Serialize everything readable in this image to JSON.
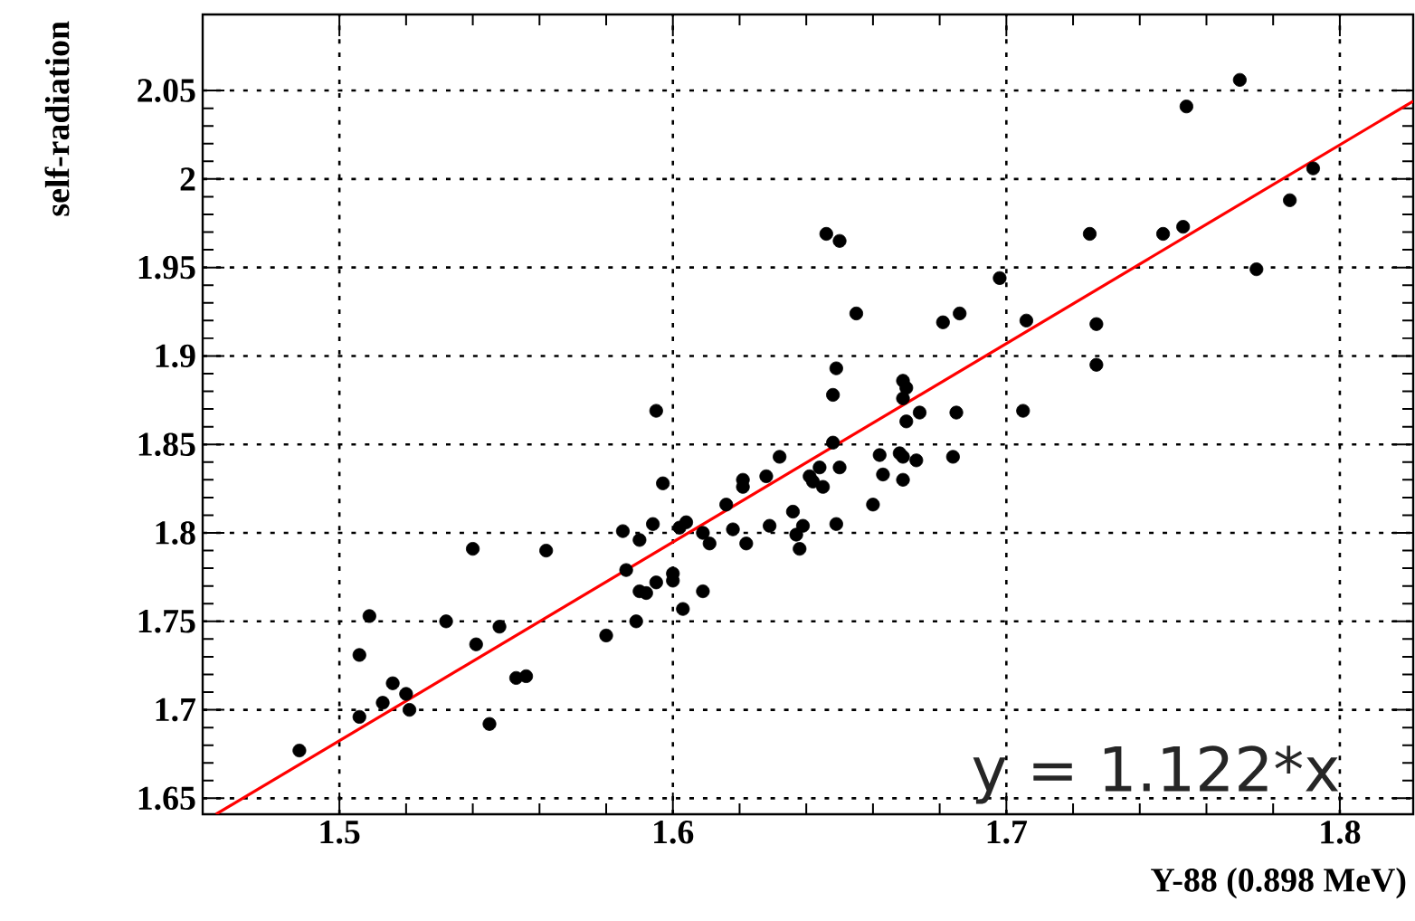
{
  "chart_data": {
    "type": "scatter",
    "xlabel": "Y-88 (0.898 MeV)",
    "ylabel": "self-radiation",
    "xlim": [
      1.459,
      1.822
    ],
    "ylim": [
      1.641,
      2.093
    ],
    "xticks": [
      1.5,
      1.6,
      1.7,
      1.8
    ],
    "yticks": [
      1.65,
      1.7,
      1.75,
      1.8,
      1.85,
      1.9,
      1.95,
      2,
      2.05
    ],
    "grid": true,
    "marker": "circle",
    "annotations": [
      "y = 1.122*x"
    ],
    "series": [
      {
        "color": "#000000",
        "x": [
          1.488,
          1.506,
          1.506,
          1.509,
          1.516,
          1.513,
          1.52,
          1.521,
          1.532,
          1.54,
          1.541,
          1.545,
          1.548,
          1.553,
          1.556,
          1.562,
          1.58,
          1.585,
          1.59,
          1.586,
          1.594,
          1.595,
          1.59,
          1.592,
          1.589,
          1.597,
          1.595,
          1.603,
          1.6,
          1.6,
          1.602,
          1.604,
          1.609,
          1.611,
          1.609,
          1.616,
          1.618,
          1.622,
          1.621,
          1.621,
          1.628,
          1.632,
          1.629,
          1.636,
          1.639,
          1.637,
          1.638,
          1.641,
          1.642,
          1.644,
          1.645,
          1.649,
          1.648,
          1.648,
          1.65,
          1.649,
          1.655,
          1.66,
          1.662,
          1.663,
          1.669,
          1.67,
          1.669,
          1.668,
          1.669,
          1.669,
          1.67,
          1.674,
          1.673,
          1.681,
          1.686,
          1.685,
          1.684,
          1.698,
          1.706,
          1.705,
          1.646,
          1.65,
          1.725,
          1.727,
          1.727,
          1.747,
          1.753,
          1.754,
          1.77,
          1.775,
          1.785,
          1.792
        ],
        "values": [
          1.677,
          1.696,
          1.731,
          1.753,
          1.715,
          1.704,
          1.709,
          1.7,
          1.75,
          1.791,
          1.737,
          1.692,
          1.747,
          1.718,
          1.719,
          1.79,
          1.742,
          1.801,
          1.796,
          1.779,
          1.805,
          1.772,
          1.767,
          1.766,
          1.75,
          1.828,
          1.869,
          1.757,
          1.777,
          1.773,
          1.803,
          1.806,
          1.8,
          1.794,
          1.767,
          1.816,
          1.802,
          1.794,
          1.83,
          1.826,
          1.832,
          1.843,
          1.804,
          1.812,
          1.804,
          1.799,
          1.791,
          1.832,
          1.829,
          1.837,
          1.826,
          1.893,
          1.878,
          1.851,
          1.837,
          1.805,
          1.924,
          1.816,
          1.844,
          1.833,
          1.886,
          1.882,
          1.876,
          1.845,
          1.843,
          1.83,
          1.863,
          1.868,
          1.841,
          1.919,
          1.924,
          1.868,
          1.843,
          1.944,
          1.92,
          1.869,
          1.969,
          1.965,
          1.969,
          1.918,
          1.895,
          1.969,
          1.973,
          2.041,
          2.056,
          1.949,
          1.988,
          2.006
        ]
      },
      {
        "type": "line",
        "color": "#ff0000",
        "marker": "none",
        "x": [
          1.463,
          1.822
        ],
        "values": [
          1.641,
          2.044
        ]
      }
    ]
  }
}
